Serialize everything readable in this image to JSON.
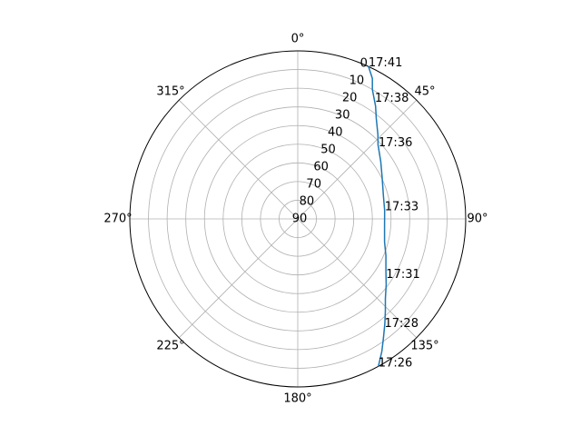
{
  "chart_data": {
    "type": "line",
    "projection": "polar",
    "theta_zero_location": "N",
    "theta_direction": "clockwise",
    "r_inverted": true,
    "rlim": [
      90,
      0
    ],
    "theta_ticks": [
      {
        "deg": 0,
        "label": "0°"
      },
      {
        "deg": 45,
        "label": "45°"
      },
      {
        "deg": 90,
        "label": "90°"
      },
      {
        "deg": 135,
        "label": "135°"
      },
      {
        "deg": 180,
        "label": "180°"
      },
      {
        "deg": 225,
        "label": "225°"
      },
      {
        "deg": 270,
        "label": "270°"
      },
      {
        "deg": 315,
        "label": "315°"
      }
    ],
    "r_ticks": [
      {
        "value": 0,
        "label": "0"
      },
      {
        "value": 10,
        "label": "10"
      },
      {
        "value": 20,
        "label": "20"
      },
      {
        "value": 30,
        "label": "30"
      },
      {
        "value": 40,
        "label": "40"
      },
      {
        "value": 50,
        "label": "50"
      },
      {
        "value": 60,
        "label": "60"
      },
      {
        "value": 70,
        "label": "70"
      },
      {
        "value": 80,
        "label": "80"
      },
      {
        "value": 90,
        "label": "90"
      }
    ],
    "r_tick_label_angle_deg": 22.5,
    "grid": true,
    "series": [
      {
        "color": "#1f77b4",
        "points": [
          {
            "azimuth": 151.3,
            "elevation": 0.0
          },
          {
            "azimuth": 147.6,
            "elevation": 5.9
          },
          {
            "azimuth": 144.2,
            "elevation": 11.5
          },
          {
            "azimuth": 140.3,
            "elevation": 17.0
          },
          {
            "azimuth": 136.4,
            "elevation": 21.9
          },
          {
            "azimuth": 132.3,
            "elevation": 26.5
          },
          {
            "azimuth": 126.7,
            "elevation": 30.9
          },
          {
            "azimuth": 120.5,
            "elevation": 35.2
          },
          {
            "azimuth": 112.7,
            "elevation": 38.8
          },
          {
            "azimuth": 104.8,
            "elevation": 41.9
          },
          {
            "azimuth": 95.1,
            "elevation": 43.3
          },
          {
            "azimuth": 84.4,
            "elevation": 43.2
          },
          {
            "azimuth": 74.5,
            "elevation": 42.4
          },
          {
            "azimuth": 63.5,
            "elevation": 39.5
          },
          {
            "azimuth": 55.3,
            "elevation": 35.9
          },
          {
            "azimuth": 47.2,
            "elevation": 31.4
          },
          {
            "azimuth": 43.6,
            "elevation": 27.7
          },
          {
            "azimuth": 38.1,
            "elevation": 21.8
          },
          {
            "azimuth": 34.6,
            "elevation": 16.6
          },
          {
            "azimuth": 30.0,
            "elevation": 10.0
          },
          {
            "azimuth": 28.0,
            "elevation": 4.8
          },
          {
            "azimuth": 24.9,
            "elevation": 0.0
          }
        ]
      }
    ],
    "annotations": [
      {
        "text": "17:26",
        "azimuth": 151.3,
        "elevation": 0.0
      },
      {
        "text": "17:28",
        "azimuth": 141.3,
        "elevation": 15.7
      },
      {
        "text": "17:31",
        "azimuth": 123.7,
        "elevation": 33.1
      },
      {
        "text": "17:33",
        "azimuth": 84.4,
        "elevation": 43.2
      },
      {
        "text": "17:36",
        "azimuth": 48.0,
        "elevation": 31.8
      },
      {
        "text": "17:38",
        "azimuth": 33.3,
        "elevation": 14.8
      },
      {
        "text": "17:41",
        "azimuth": 24.9,
        "elevation": 0.0
      }
    ]
  }
}
